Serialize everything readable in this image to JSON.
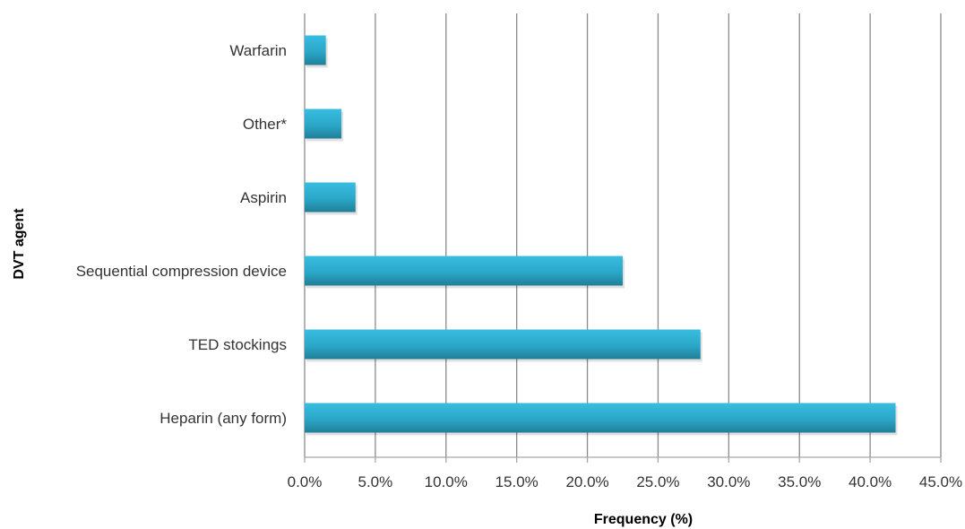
{
  "chart_data": {
    "type": "bar",
    "orientation": "horizontal",
    "title": "",
    "xlabel": "Frequency (%)",
    "ylabel": "DVT agent",
    "categories": [
      "Warfarin",
      "Other*",
      "Aspirin",
      "Sequential compression device",
      "TED stockings",
      "Heparin (any form)"
    ],
    "values": [
      1.5,
      2.6,
      3.6,
      22.5,
      28.0,
      41.8
    ],
    "xlim": [
      0,
      45
    ],
    "x_ticks": [
      0,
      5,
      10,
      15,
      20,
      25,
      30,
      35,
      40,
      45
    ],
    "x_tick_labels": [
      "0.0%",
      "5.0%",
      "10.0%",
      "15.0%",
      "20.0%",
      "25.0%",
      "30.0%",
      "35.0%",
      "40.0%",
      "45.0%"
    ],
    "grid": "vertical",
    "legend": "none",
    "colors": {
      "bar_top": "#38bde0",
      "bar_bottom": "#1f7f98",
      "grid": "#8a8a8a",
      "axis": "#a6a6a6"
    }
  }
}
